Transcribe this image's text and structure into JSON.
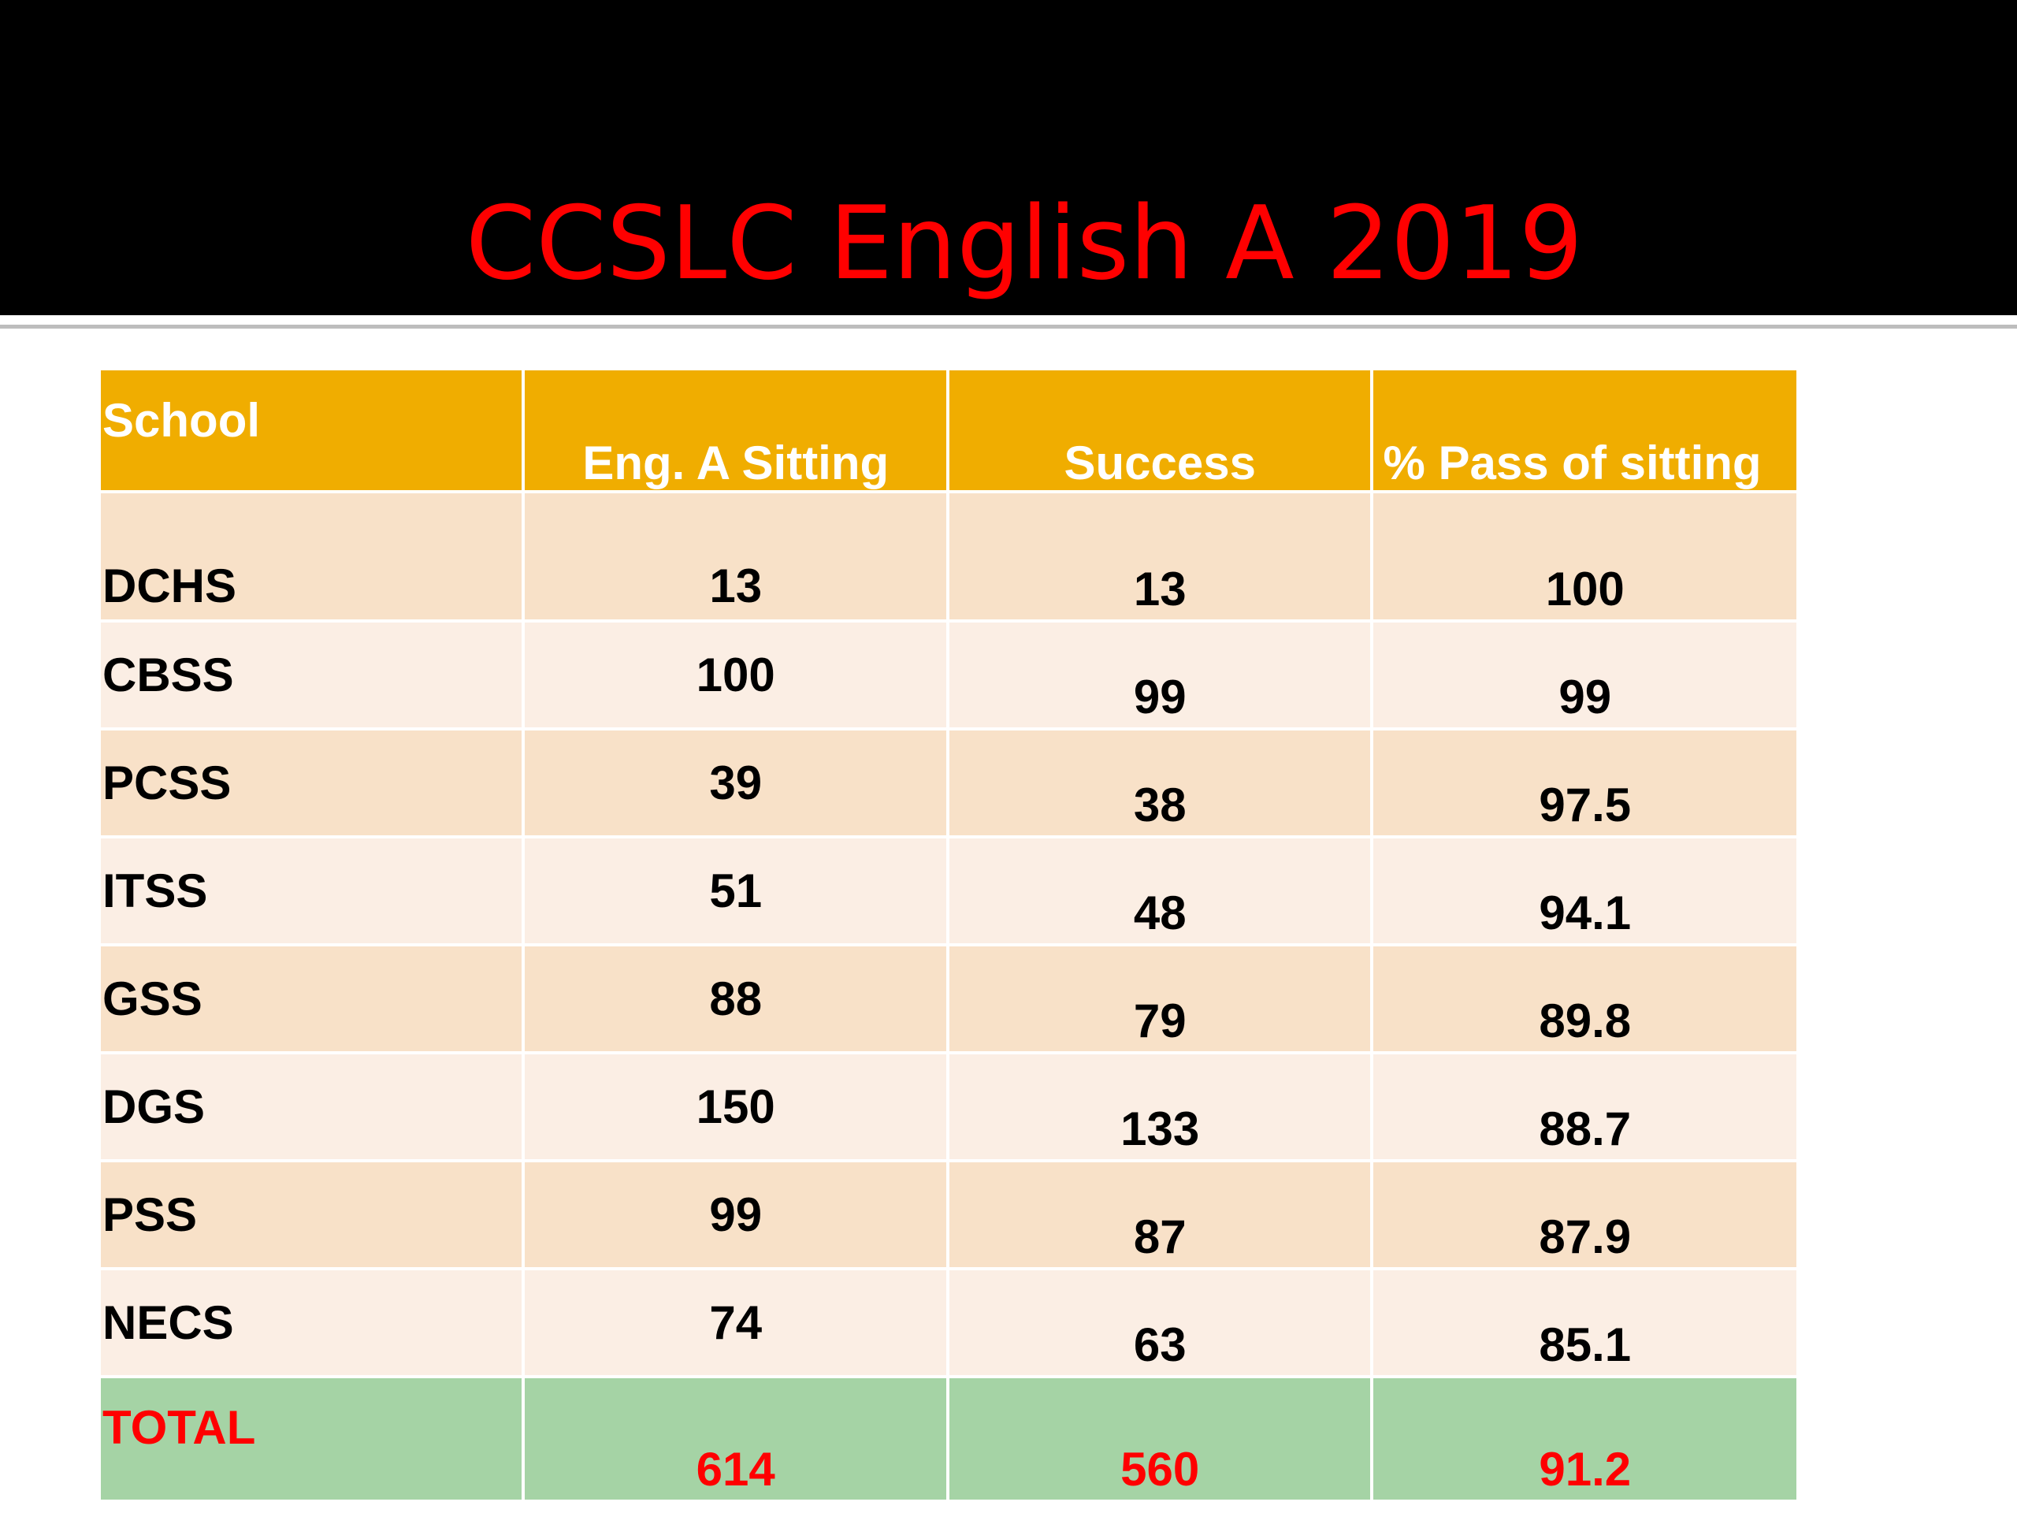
{
  "slide": {
    "title": "CCSLC English A 2019"
  },
  "table": {
    "headers": [
      "School",
      "Eng. A Sitting",
      "Success",
      "% Pass of sitting"
    ],
    "rows": [
      {
        "school": "DCHS",
        "sitting": "13",
        "success": "13",
        "pass": "100"
      },
      {
        "school": "CBSS",
        "sitting": "100",
        "success": "99",
        "pass": "99"
      },
      {
        "school": "PCSS",
        "sitting": "39",
        "success": "38",
        "pass": "97.5"
      },
      {
        "school": "ITSS",
        "sitting": "51",
        "success": "48",
        "pass": "94.1"
      },
      {
        "school": "GSS",
        "sitting": "88",
        "success": "79",
        "pass": "89.8"
      },
      {
        "school": "DGS",
        "sitting": "150",
        "success": "133",
        "pass": "88.7"
      },
      {
        "school": "PSS",
        "sitting": "99",
        "success": "87",
        "pass": "87.9"
      },
      {
        "school": "NECS",
        "sitting": "74",
        "success": "63",
        "pass": "85.1"
      }
    ],
    "total": {
      "school": "TOTAL",
      "sitting": "614",
      "success": "560",
      "pass": "91.2"
    }
  },
  "colors": {
    "title": "#ff0000",
    "header_bg": "#f0ad00",
    "row_odd_bg": "#f8e1c8",
    "row_even_bg": "#fbeee4",
    "total_bg": "#a5d3a5",
    "total_text": "#ff0000"
  }
}
